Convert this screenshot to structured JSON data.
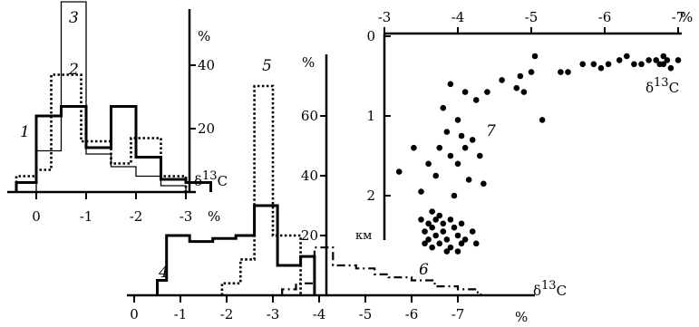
{
  "chart_data": [
    {
      "id": "A",
      "type": "histogram-step",
      "title": "",
      "xlabel": "δ13C",
      "xunit": "%",
      "yunit": "%",
      "x_ticks": [
        "0",
        "-1",
        "-2",
        "-3"
      ],
      "y_ticks": [
        "20",
        "40"
      ],
      "x_range": [
        0.4,
        -3.5
      ],
      "y_range": [
        0,
        58
      ],
      "series": [
        {
          "name": "1",
          "style": "thick",
          "bins": [
            {
              "x": 0.4,
              "v": 3
            },
            {
              "x": 0.0,
              "v": 24
            },
            {
              "x": -0.5,
              "v": 27
            },
            {
              "x": -1.0,
              "v": 14
            },
            {
              "x": -1.5,
              "v": 27
            },
            {
              "x": -2.0,
              "v": 11
            },
            {
              "x": -2.5,
              "v": 4
            },
            {
              "x": -3.0,
              "v": 3
            },
            {
              "x": -3.5,
              "v": null
            }
          ]
        },
        {
          "name": "2",
          "style": "dotted",
          "bins": [
            {
              "x": 0.4,
              "v": 5
            },
            {
              "x": 0.0,
              "v": 7
            },
            {
              "x": -0.3,
              "v": 37
            },
            {
              "x": -0.9,
              "v": 16
            },
            {
              "x": -1.5,
              "v": 9
            },
            {
              "x": -1.9,
              "v": 17
            },
            {
              "x": -2.5,
              "v": 5
            },
            {
              "x": -3.0,
              "v": null
            }
          ]
        },
        {
          "name": "3",
          "style": "thin",
          "bins": [
            {
              "x": 0.4,
              "v": 0
            },
            {
              "x": 0.0,
              "v": 13
            },
            {
              "x": -0.5,
              "v": 60
            },
            {
              "x": -1.0,
              "v": 12
            },
            {
              "x": -1.5,
              "v": 8
            },
            {
              "x": -2.0,
              "v": 5
            },
            {
              "x": -2.5,
              "v": 2
            },
            {
              "x": -3.0,
              "v": null
            }
          ]
        }
      ]
    },
    {
      "id": "B",
      "type": "histogram-step",
      "title": "",
      "xlabel": "δ13C",
      "xunit": "%",
      "yunit": "%",
      "x_ticks": [
        "0",
        "-1",
        "-2",
        "-3",
        "-4",
        "-5",
        "-6",
        "-7"
      ],
      "y_ticks": [
        "20",
        "40",
        "60"
      ],
      "x_range": [
        0,
        -7.5
      ],
      "y_range": [
        0,
        80
      ],
      "series": [
        {
          "name": "4",
          "style": "thick",
          "bins": [
            {
              "x": -0.5,
              "v": 5
            },
            {
              "x": -0.7,
              "v": 20
            },
            {
              "x": -1.2,
              "v": 18
            },
            {
              "x": -1.7,
              "v": 19
            },
            {
              "x": -2.2,
              "v": 20
            },
            {
              "x": -2.6,
              "v": 30
            },
            {
              "x": -3.1,
              "v": 10
            },
            {
              "x": -3.6,
              "v": 13
            },
            {
              "x": -3.9,
              "v": null
            }
          ]
        },
        {
          "name": "5",
          "style": "dotted",
          "bins": [
            {
              "x": -1.9,
              "v": 4
            },
            {
              "x": -2.3,
              "v": 12
            },
            {
              "x": -2.6,
              "v": 70
            },
            {
              "x": -3.0,
              "v": 20
            },
            {
              "x": -3.6,
              "v": null
            }
          ]
        },
        {
          "name": "6",
          "style": "dashed",
          "bins": [
            {
              "x": -3.2,
              "v": 2
            },
            {
              "x": -3.5,
              "v": 4
            },
            {
              "x": -3.9,
              "v": 16
            },
            {
              "x": -4.3,
              "v": 10
            },
            {
              "x": -4.8,
              "v": 9
            },
            {
              "x": -5.2,
              "v": 7
            },
            {
              "x": -5.5,
              "v": 6
            },
            {
              "x": -6.0,
              "v": 5
            },
            {
              "x": -6.5,
              "v": 3
            },
            {
              "x": -7.0,
              "v": 2
            },
            {
              "x": -7.4,
              "v": 1
            },
            {
              "x": -7.5,
              "v": null
            }
          ]
        }
      ]
    },
    {
      "id": "C",
      "type": "scatter",
      "title": "",
      "xlabel": "δ13C",
      "xunit": "%",
      "yunit": "км",
      "x_ticks": [
        "-3",
        "-4",
        "-5",
        "-6",
        "-7"
      ],
      "y_ticks": [
        "0",
        "1",
        "2"
      ],
      "x_range": [
        -3,
        -7.1
      ],
      "y_range": [
        0,
        2.7
      ],
      "series": [
        {
          "name": "7",
          "points": [
            [
              -3.2,
              1.7
            ],
            [
              -3.4,
              1.4
            ],
            [
              -3.5,
              1.95
            ],
            [
              -3.6,
              1.6
            ],
            [
              -3.7,
              1.75
            ],
            [
              -3.75,
              1.4
            ],
            [
              -3.8,
              0.9
            ],
            [
              -3.85,
              1.2
            ],
            [
              -3.9,
              0.6
            ],
            [
              -3.9,
              1.5
            ],
            [
              -3.95,
              2.0
            ],
            [
              -4.0,
              1.05
            ],
            [
              -4.0,
              1.6
            ],
            [
              -4.05,
              1.25
            ],
            [
              -4.1,
              0.7
            ],
            [
              -4.1,
              1.4
            ],
            [
              -4.15,
              1.8
            ],
            [
              -4.2,
              1.3
            ],
            [
              -4.25,
              0.8
            ],
            [
              -4.3,
              1.5
            ],
            [
              -4.35,
              1.85
            ],
            [
              -4.4,
              0.7
            ],
            [
              -4.6,
              0.55
            ],
            [
              -4.8,
              0.65
            ],
            [
              -4.85,
              0.5
            ],
            [
              -4.9,
              0.7
            ],
            [
              -5.0,
              0.45
            ],
            [
              -5.05,
              0.25
            ],
            [
              -5.15,
              1.05
            ],
            [
              -5.4,
              0.45
            ],
            [
              -5.5,
              0.45
            ],
            [
              -5.7,
              0.35
            ],
            [
              -5.85,
              0.35
            ],
            [
              -5.95,
              0.4
            ],
            [
              -6.05,
              0.35
            ],
            [
              -6.2,
              0.3
            ],
            [
              -6.3,
              0.25
            ],
            [
              -6.4,
              0.35
            ],
            [
              -6.5,
              0.35
            ],
            [
              -6.6,
              0.3
            ],
            [
              -6.7,
              0.3
            ],
            [
              -6.8,
              0.35
            ],
            [
              -6.85,
              0.3
            ],
            [
              -6.9,
              0.4
            ],
            [
              -7.0,
              0.3
            ],
            [
              -6.8,
              0.25
            ],
            [
              -6.75,
              0.35
            ],
            [
              -3.5,
              2.3
            ],
            [
              -3.55,
              2.45
            ],
            [
              -3.6,
              2.35
            ],
            [
              -3.6,
              2.55
            ],
            [
              -3.65,
              2.2
            ],
            [
              -3.65,
              2.4
            ],
            [
              -3.7,
              2.3
            ],
            [
              -3.7,
              2.5
            ],
            [
              -3.75,
              2.6
            ],
            [
              -3.8,
              2.35
            ],
            [
              -3.8,
              2.45
            ],
            [
              -3.85,
              2.55
            ],
            [
              -3.9,
              2.3
            ],
            [
              -3.9,
              2.65
            ],
            [
              -3.95,
              2.4
            ],
            [
              -4.0,
              2.5
            ],
            [
              -4.05,
              2.35
            ],
            [
              -4.05,
              2.6
            ],
            [
              -4.1,
              2.55
            ],
            [
              -4.2,
              2.45
            ],
            [
              -4.25,
              2.6
            ],
            [
              -3.55,
              2.6
            ],
            [
              -3.75,
              2.25
            ],
            [
              -3.85,
              2.7
            ],
            [
              -4.0,
              2.7
            ],
            [
              -3.65,
              2.65
            ]
          ]
        }
      ]
    }
  ]
}
